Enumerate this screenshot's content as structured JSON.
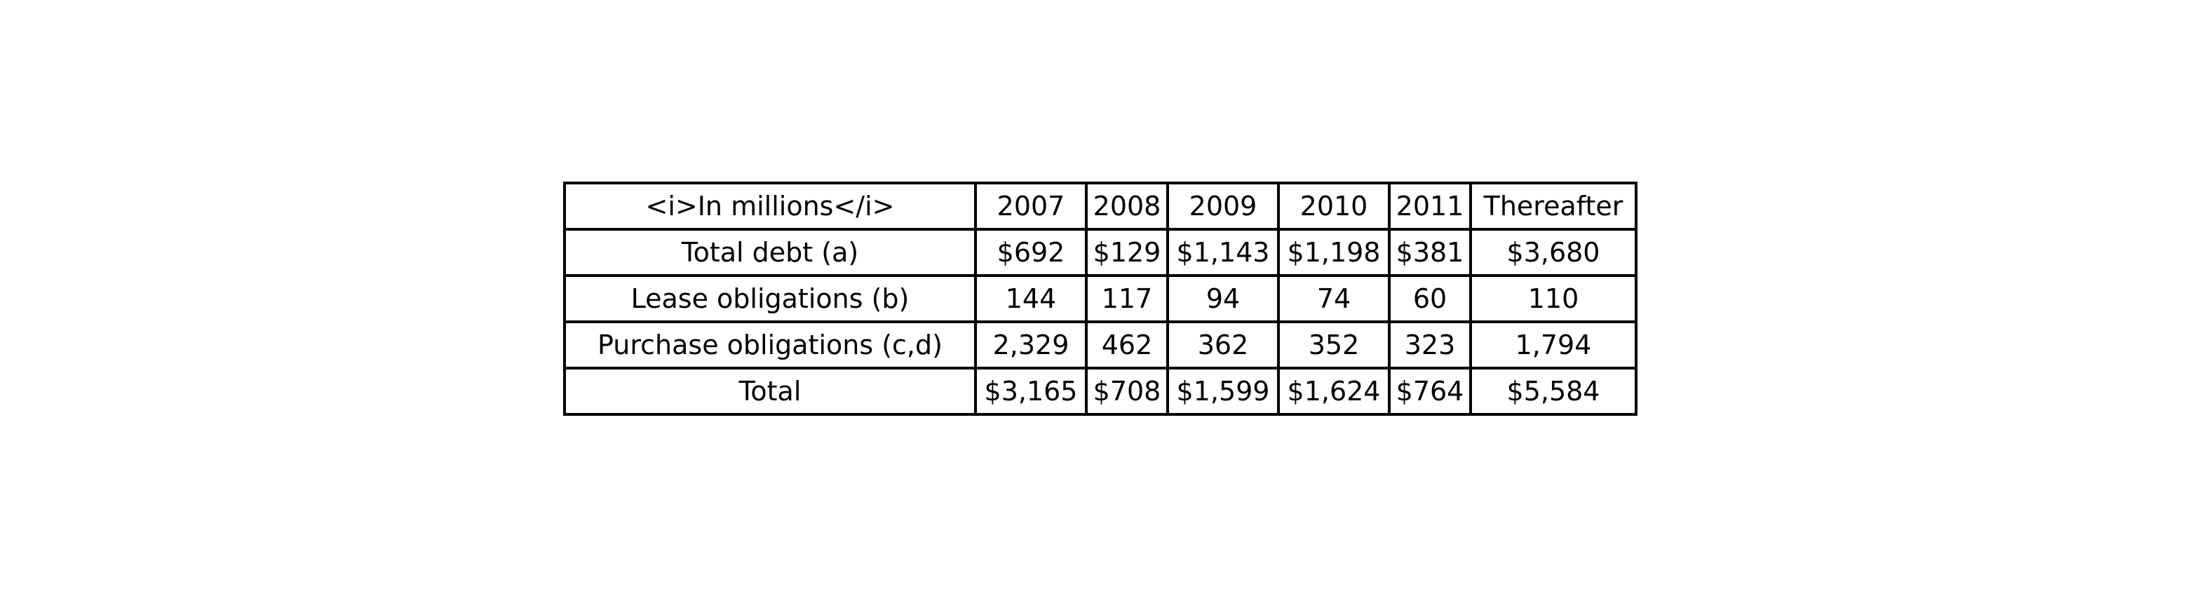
{
  "chart_data": {
    "type": "table",
    "columns": [
      "<i>In millions</i>",
      "2007",
      "2008",
      "2009",
      "2010",
      "2011",
      "Thereafter"
    ],
    "rows": [
      [
        "Total debt (a)",
        "$692",
        "$129",
        "$1,143",
        "$1,198",
        "$381",
        "$3,680"
      ],
      [
        "Lease obligations (b)",
        "144",
        "117",
        "94",
        "74",
        "60",
        "110"
      ],
      [
        "Purchase obligations (c,d)",
        "2,329",
        "462",
        "362",
        "352",
        "323",
        "1,794"
      ],
      [
        "Total",
        "$3,165",
        "$708",
        "$1,599",
        "$1,624",
        "$764",
        "$5,584"
      ]
    ]
  }
}
